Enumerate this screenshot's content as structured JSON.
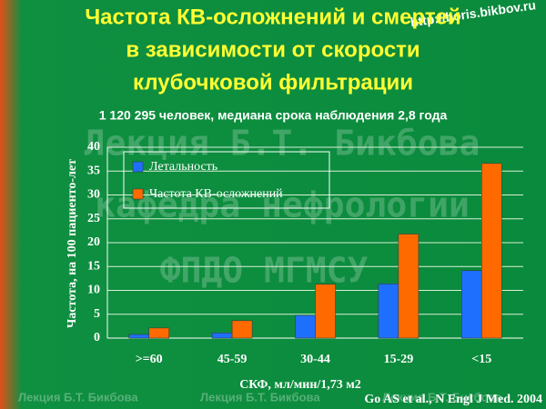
{
  "slide": {
    "title_lines": [
      "Частота КВ-осложнений и смертей",
      "в зависимости от скорости",
      "клубочковой фильтрации"
    ],
    "url": "http://boris.bikbov.ru",
    "subtitle": "1 120 295 человек, медиана срока наблюдения 2,8 года",
    "watermarks": [
      "Лекция Б.Т. Бикбова",
      "кафедра нефрологии",
      "ФПДО МГМСУ"
    ],
    "footer_watermarks": [
      "Лекция Б.Т. Бикбова",
      "Лекция Б.Т. Бикбова",
      "Лекция Б.Т. Бикбова"
    ],
    "citation": "Go AS et al., N Engl J Med. 2004"
  },
  "chart_data": {
    "type": "bar",
    "ylabel": "Частота, на 100 пациенто-лет",
    "xlabel": "СКФ, мл/мин/1,73 м2",
    "categories": [
      ">=60",
      "45-59",
      "30-44",
      "15-29",
      "<15"
    ],
    "series": [
      {
        "name": "Летальность",
        "color": "#1f6fff",
        "values": [
          0.76,
          1.08,
          4.76,
          11.36,
          14.14
        ]
      },
      {
        "name": "Частота КВ-осложнений",
        "color": "#ff6a00",
        "values": [
          2.11,
          3.65,
          11.29,
          21.8,
          36.6
        ]
      }
    ],
    "ylim": [
      0,
      40
    ],
    "yticks": [
      0,
      5,
      10,
      15,
      20,
      25,
      30,
      35,
      40
    ],
    "grid": true
  }
}
